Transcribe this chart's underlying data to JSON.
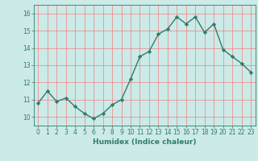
{
  "x": [
    0,
    1,
    2,
    3,
    4,
    5,
    6,
    7,
    8,
    9,
    10,
    11,
    12,
    13,
    14,
    15,
    16,
    17,
    18,
    19,
    20,
    21,
    22,
    23
  ],
  "y": [
    10.8,
    11.5,
    10.9,
    11.1,
    10.6,
    10.2,
    9.9,
    10.2,
    10.7,
    11.0,
    12.2,
    13.5,
    13.8,
    14.8,
    15.1,
    15.8,
    15.4,
    15.8,
    14.9,
    15.4,
    13.9,
    13.5,
    13.1,
    12.6
  ],
  "line_color": "#2e7d6e",
  "marker": "D",
  "marker_size": 2.2,
  "bg_color": "#cceae7",
  "grid_color": "#f08080",
  "xlabel": "Humidex (Indice chaleur)",
  "ylim": [
    9.5,
    16.5
  ],
  "xlim": [
    -0.5,
    23.5
  ],
  "yticks": [
    10,
    11,
    12,
    13,
    14,
    15,
    16
  ],
  "xticks": [
    0,
    1,
    2,
    3,
    4,
    5,
    6,
    7,
    8,
    9,
    10,
    11,
    12,
    13,
    14,
    15,
    16,
    17,
    18,
    19,
    20,
    21,
    22,
    23
  ],
  "tick_fontsize": 5.5,
  "xlabel_fontsize": 6.5,
  "linewidth": 1.0
}
